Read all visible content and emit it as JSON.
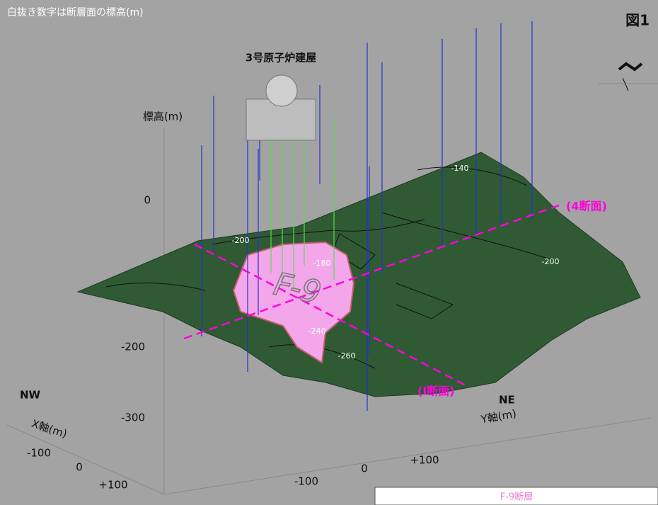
{
  "note": "白抜き数字は断層面の標高(m)",
  "figure": "図1",
  "building": "3号原子炉建屋",
  "north": "N",
  "z_axis": {
    "title": "標高(m)",
    "ticks": [
      "0",
      "-200",
      "-300"
    ]
  },
  "x_axis": {
    "title": "X軸(m)",
    "direction": "NW",
    "ticks": [
      "-100",
      "0",
      "+100"
    ]
  },
  "y_axis": {
    "title": "Y軸(m)",
    "direction": "NE",
    "ticks": [
      "-100",
      "0",
      "+100"
    ]
  },
  "contours": [
    "-140",
    "-200",
    "-200",
    "-180",
    "-240",
    "-260"
  ],
  "fault_label": "F-9",
  "sections": [
    "(4断面)",
    "(I断面)"
  ],
  "legend": "F-9断層"
}
